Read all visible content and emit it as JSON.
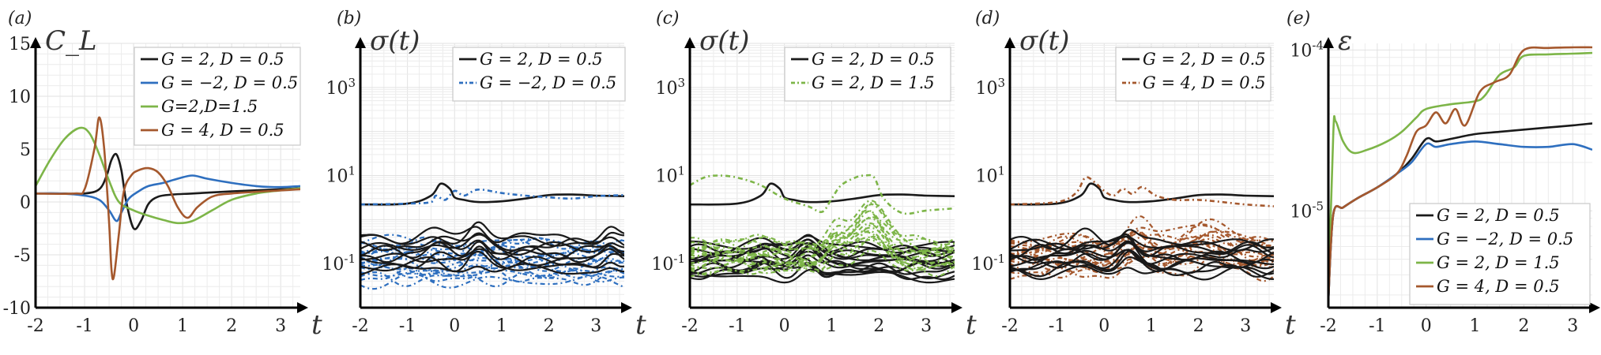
{
  "panel_labels": [
    "(a)",
    "(b)",
    "(c)",
    "(d)",
    "(e)"
  ],
  "colors": {
    "G2D05": "#1a1a1a",
    "Gm2D05": "#2e6fbf",
    "G2D15": "#7db548",
    "G4D05": "#a5582d",
    "legend_border": "#c8c8c8",
    "grid": "#ececec"
  },
  "chart_data": [
    {
      "id": "a",
      "type": "line",
      "ylabel": "C_L",
      "xlabel": "t",
      "xlim": [
        -2,
        3.4
      ],
      "ylim": [
        -10,
        15
      ],
      "yscale": "linear",
      "xticks": [
        "-2",
        "-1",
        "0",
        "1",
        "2",
        "3"
      ],
      "yticks": [
        {
          "v": -10,
          "t": "-10"
        },
        {
          "v": -5,
          "t": "-5"
        },
        {
          "v": 0,
          "t": "0"
        },
        {
          "v": 5,
          "t": "5"
        },
        {
          "v": 10,
          "t": "10"
        },
        {
          "v": 15,
          "t": "15"
        }
      ],
      "legend_position": "top-right",
      "series": [
        {
          "name": "G = 2, D = 0.5",
          "color_key": "G2D05",
          "dash": "none",
          "x": [
            -2,
            -1.5,
            -1,
            -0.7,
            -0.55,
            -0.45,
            -0.35,
            -0.25,
            -0.15,
            0,
            0.15,
            0.3,
            0.5,
            0.8,
            1.2,
            2,
            3,
            3.4
          ],
          "y": [
            0.8,
            0.8,
            0.8,
            1.2,
            2.5,
            4,
            4.5,
            3,
            0,
            -2.5,
            -1.8,
            -0.2,
            0.5,
            0.7,
            0.8,
            1,
            1.2,
            1.3
          ]
        },
        {
          "name": "G = −2, D = 0.5",
          "color_key": "Gm2D05",
          "dash": "none",
          "x": [
            -2,
            -1.5,
            -1,
            -0.7,
            -0.5,
            -0.35,
            -0.25,
            -0.1,
            0.1,
            0.3,
            0.6,
            0.9,
            1.2,
            1.5,
            2,
            2.5,
            3,
            3.4
          ],
          "y": [
            0.8,
            0.8,
            0.6,
            0.2,
            -0.8,
            -1.8,
            -1,
            0.3,
            1,
            1.5,
            1.8,
            2.2,
            2.5,
            2.2,
            1.8,
            1.5,
            1.4,
            1.5
          ]
        },
        {
          "name": "G=2,D=1.5",
          "color_key": "G2D15",
          "dash": "none",
          "x": [
            -2,
            -1.7,
            -1.4,
            -1.1,
            -0.9,
            -0.7,
            -0.5,
            -0.3,
            0,
            0.3,
            0.6,
            0.9,
            1.2,
            1.6,
            2,
            2.5,
            3,
            3.4
          ],
          "y": [
            1.5,
            4,
            6,
            7,
            6.5,
            4.5,
            2,
            0,
            -0.8,
            -1.3,
            -1.7,
            -2,
            -1.8,
            -0.8,
            0.2,
            0.8,
            1.1,
            1.3
          ]
        },
        {
          "name": "G = 4, D = 0.5",
          "color_key": "G4D05",
          "dash": "none",
          "x": [
            -2,
            -1.2,
            -1,
            -0.8,
            -0.7,
            -0.6,
            -0.5,
            -0.45,
            -0.4,
            -0.3,
            -0.2,
            -0.05,
            0.1,
            0.3,
            0.5,
            0.7,
            0.9,
            1.1,
            1.3,
            1.6,
            2,
            3,
            3.4
          ],
          "y": [
            0.8,
            0.8,
            1.2,
            5,
            8,
            5,
            -2,
            -6.5,
            -7,
            -3,
            1,
            2.5,
            3,
            3.2,
            2.8,
            1.5,
            -0.5,
            -1.5,
            -0.5,
            0.5,
            0.8,
            1.1,
            1.2
          ]
        }
      ]
    },
    {
      "id": "b",
      "type": "line",
      "ylabel": "σ(t)",
      "xlabel": "t",
      "xlim": [
        -2,
        3.6
      ],
      "ylim": [
        0.01,
        10000
      ],
      "yscale": "log",
      "xticks": [
        "-2",
        "-1",
        "0",
        "1",
        "2",
        "3"
      ],
      "yticks": [
        {
          "v": 0.1,
          "base": "10",
          "exp": "-1"
        },
        {
          "v": 10,
          "base": "10",
          "exp": "1"
        },
        {
          "v": 1000,
          "base": "10",
          "exp": "3"
        }
      ],
      "legend_position": "top-right",
      "series": [
        {
          "name": "G = 2, D = 0.5",
          "color_key": "G2D05",
          "dash": "none",
          "x": [
            -2,
            -1,
            -0.5,
            -0.3,
            -0.1,
            0,
            0.2,
            0.5,
            1,
            1.5,
            2,
            2.5,
            3,
            3.6
          ],
          "y": [
            2.2,
            2.3,
            3.5,
            6.5,
            5,
            3.2,
            2.8,
            2.5,
            2.6,
            3,
            3.6,
            3.7,
            3.5,
            3.4
          ]
        },
        {
          "name": "G = −2, D = 0.5",
          "color_key": "Gm2D05",
          "dash": "6,4,2,4",
          "x": [
            -2,
            -1,
            -0.5,
            -0.4,
            -0.2,
            0,
            0.2,
            0.5,
            1,
            1.5,
            2,
            2.5,
            3,
            3.6
          ],
          "y": [
            2.2,
            2.3,
            2.5,
            3.5,
            2.8,
            4.5,
            3.5,
            4.8,
            4,
            3.5,
            3.2,
            3,
            3.4,
            3.6
          ]
        }
      ],
      "bands": [
        {
          "color_key": "Gm2D05",
          "dash": "6,4,2,4",
          "lo": 0.04,
          "hi": 0.3,
          "count": 16,
          "phase": 0.8,
          "amp": 0.12,
          "bumps": []
        },
        {
          "color_key": "G2D05",
          "dash": "none",
          "lo": 0.07,
          "hi": 0.4,
          "count": 10,
          "phase": 1.7,
          "amp": 0.1,
          "bumps": [
            {
              "x": -0.4,
              "w": 0.3,
              "amp": 0.2
            },
            {
              "x": 0.5,
              "w": 0.25,
              "amp": 0.4
            },
            {
              "x": 3.3,
              "w": 0.2,
              "amp": 0.25
            }
          ]
        }
      ]
    },
    {
      "id": "c",
      "type": "line",
      "ylabel": "σ(t)",
      "xlabel": "t",
      "xlim": [
        -2,
        3.6
      ],
      "ylim": [
        0.01,
        10000
      ],
      "yscale": "log",
      "xticks": [
        "-2",
        "-1",
        "0",
        "1",
        "2",
        "3"
      ],
      "yticks": [
        {
          "v": 0.1,
          "base": "10",
          "exp": "-1"
        },
        {
          "v": 10,
          "base": "10",
          "exp": "1"
        },
        {
          "v": 1000,
          "base": "10",
          "exp": "3"
        }
      ],
      "legend_position": "top-right",
      "series": [
        {
          "name": "G = 2, D = 0.5",
          "color_key": "G2D05",
          "dash": "none",
          "x": [
            -2,
            -1,
            -0.5,
            -0.3,
            -0.1,
            0,
            0.2,
            0.5,
            1,
            1.5,
            2,
            2.5,
            3,
            3.6
          ],
          "y": [
            2.2,
            2.3,
            3.5,
            6.5,
            5,
            3.2,
            2.8,
            2.5,
            2.6,
            3,
            3.6,
            3.7,
            3.5,
            3.4
          ]
        },
        {
          "name": "G = 2, D = 1.5",
          "color_key": "G2D15",
          "dash": "6,4,2,4",
          "x": [
            -2,
            -1.7,
            -1.4,
            -1,
            -0.5,
            0,
            0.5,
            0.8,
            1,
            1.2,
            1.5,
            1.7,
            1.9,
            2.1,
            2.5,
            3,
            3.6
          ],
          "y": [
            6,
            9,
            10,
            9,
            6,
            3,
            2,
            1.5,
            3,
            6,
            9,
            10,
            9,
            3,
            1.4,
            1.6,
            1.8
          ]
        }
      ],
      "bands": [
        {
          "color_key": "G2D05",
          "dash": "none",
          "lo": 0.05,
          "hi": 0.25,
          "count": 14,
          "phase": 2.3,
          "amp": 0.1,
          "bumps": [
            {
              "x": -0.4,
              "w": 0.3,
              "amp": 0.2
            },
            {
              "x": 0.5,
              "w": 0.25,
              "amp": 0.4
            }
          ]
        },
        {
          "color_key": "G2D15",
          "dash": "6,4,2,4",
          "lo": 0.07,
          "hi": 0.3,
          "count": 16,
          "phase": 1.1,
          "amp": 0.12,
          "bumps": [
            {
              "x": 1.8,
              "w": 0.45,
              "amp": 1.1
            },
            {
              "x": 1.1,
              "w": 0.25,
              "amp": 0.45
            }
          ]
        }
      ]
    },
    {
      "id": "d",
      "type": "line",
      "ylabel": "σ(t)",
      "xlabel": "t",
      "xlim": [
        -2,
        3.6
      ],
      "ylim": [
        0.01,
        10000
      ],
      "yscale": "log",
      "xticks": [
        "-2",
        "-1",
        "0",
        "1",
        "2",
        "3"
      ],
      "yticks": [
        {
          "v": 0.1,
          "base": "10",
          "exp": "-1"
        },
        {
          "v": 10,
          "base": "10",
          "exp": "1"
        },
        {
          "v": 1000,
          "base": "10",
          "exp": "3"
        }
      ],
      "legend_position": "top-right",
      "series": [
        {
          "name": "G = 2, D = 0.5",
          "color_key": "G2D05",
          "dash": "none",
          "x": [
            -2,
            -1,
            -0.5,
            -0.3,
            -0.1,
            0,
            0.2,
            0.5,
            1,
            1.5,
            2,
            2.5,
            3,
            3.6
          ],
          "y": [
            2.2,
            2.3,
            3.5,
            6.5,
            5,
            3.2,
            2.8,
            2.5,
            2.6,
            3,
            3.6,
            3.7,
            3.5,
            3.4
          ]
        },
        {
          "name": "G = 4, D = 0.5",
          "color_key": "G4D05",
          "dash": "6,4,2,4",
          "x": [
            -2,
            -1,
            -0.6,
            -0.4,
            -0.2,
            0,
            0.2,
            0.4,
            0.6,
            0.8,
            1.1,
            1.5,
            2,
            2.5,
            3,
            3.6
          ],
          "y": [
            2.2,
            2.5,
            4,
            9,
            7,
            4.5,
            3.5,
            5,
            3.8,
            5.5,
            3.5,
            2.8,
            2.8,
            2.5,
            2.2,
            2
          ]
        }
      ],
      "bands": [
        {
          "color_key": "G4D05",
          "dash": "6,4,2,4",
          "lo": 0.06,
          "hi": 0.35,
          "count": 16,
          "phase": 0.4,
          "amp": 0.12,
          "bumps": [
            {
              "x": 0.7,
              "w": 0.35,
              "amp": 0.5
            },
            {
              "x": 2.2,
              "w": 0.6,
              "amp": 0.5
            }
          ]
        },
        {
          "color_key": "G2D05",
          "dash": "none",
          "lo": 0.06,
          "hi": 0.3,
          "count": 12,
          "phase": 2.9,
          "amp": 0.1,
          "bumps": [
            {
              "x": -0.4,
              "w": 0.3,
              "amp": 0.2
            },
            {
              "x": 0.5,
              "w": 0.25,
              "amp": 0.4
            }
          ]
        }
      ]
    },
    {
      "id": "e",
      "type": "line",
      "ylabel": "ε",
      "xlabel": "t",
      "xlim": [
        -2,
        3.4
      ],
      "ylim": [
        2.5e-06,
        0.00011
      ],
      "yscale": "log",
      "xticks": [
        "-2",
        "-1",
        "0",
        "1",
        "2",
        "3"
      ],
      "yticks": [
        {
          "v": 1e-05,
          "base": "10",
          "exp": "-5"
        },
        {
          "v": 0.0001,
          "base": "10",
          "exp": "-4"
        }
      ],
      "legend_position": "bottom-right",
      "series": [
        {
          "name": "G = 2, D = 0.5",
          "color_key": "G2D05",
          "dash": "none",
          "x": [
            -2,
            -1.9,
            -1.7,
            -1.4,
            -1,
            -0.6,
            -0.3,
            0,
            0.2,
            0.5,
            1,
            1.5,
            2,
            2.5,
            3,
            3.4
          ],
          "y": [
            2.8e-06,
            9.5e-06,
            1.05e-05,
            1.2e-05,
            1.4e-05,
            1.7e-05,
            2.1e-05,
            2.8e-05,
            2.7e-05,
            2.8e-05,
            3e-05,
            3.1e-05,
            3.2e-05,
            3.3e-05,
            3.4e-05,
            3.5e-05
          ]
        },
        {
          "name": "G = −2, D = 0.5",
          "color_key": "Gm2D05",
          "dash": "none",
          "x": [
            -2,
            -1.9,
            -1.7,
            -1.4,
            -1,
            -0.6,
            -0.3,
            0,
            0.2,
            0.5,
            1,
            1.5,
            2,
            2.5,
            3,
            3.4
          ],
          "y": [
            2.8e-06,
            9.5e-06,
            1.05e-05,
            1.2e-05,
            1.4e-05,
            1.7e-05,
            2e-05,
            2.6e-05,
            2.5e-05,
            2.6e-05,
            2.7e-05,
            2.6e-05,
            2.5e-05,
            2.5e-05,
            2.6e-05,
            2.4e-05
          ]
        },
        {
          "name": "G = 2, D = 1.5",
          "color_key": "G2D15",
          "dash": "none",
          "x": [
            -2,
            -1.9,
            -1.85,
            -1.7,
            -1.5,
            -1.2,
            -0.8,
            -0.5,
            -0.2,
            0,
            0.5,
            1,
            1.2,
            1.5,
            1.8,
            2,
            2.5,
            3,
            3.4
          ],
          "y": [
            2.8e-06,
            3e-05,
            3.6e-05,
            2.7e-05,
            2.3e-05,
            2.4e-05,
            2.7e-05,
            3.1e-05,
            3.8e-05,
            4.3e-05,
            4.6e-05,
            4.8e-05,
            5.2e-05,
            7e-05,
            7.8e-05,
            9.2e-05,
            9.4e-05,
            9.5e-05,
            9.6e-05
          ]
        },
        {
          "name": "G = 4, D = 0.5",
          "color_key": "G4D05",
          "dash": "none",
          "x": [
            -2,
            -1.9,
            -1.7,
            -1.4,
            -1,
            -0.6,
            -0.4,
            -0.2,
            0,
            0.2,
            0.4,
            0.6,
            0.8,
            1.1,
            1.4,
            1.7,
            2,
            2.5,
            3,
            3.4
          ],
          "y": [
            2.8e-06,
            9.5e-06,
            1.05e-05,
            1.2e-05,
            1.4e-05,
            1.7e-05,
            2.2e-05,
            3.1e-05,
            3.4e-05,
            4.1e-05,
            3.5e-05,
            4.3e-05,
            3.4e-05,
            5.5e-05,
            6.3e-05,
            7e-05,
            0.0001,
            0.000103,
            0.000104,
            0.000104
          ]
        }
      ]
    }
  ],
  "legends": [
    {
      "panel": "a",
      "entries": [
        {
          "color_key": "G2D05",
          "dash": "none",
          "label": "G = 2, D = 0.5"
        },
        {
          "color_key": "Gm2D05",
          "dash": "none",
          "label": "G = −2, D = 0.5"
        },
        {
          "color_key": "G2D15",
          "dash": "none",
          "label": "G=2,D=1.5"
        },
        {
          "color_key": "G4D05",
          "dash": "none",
          "label": "G = 4, D = 0.5"
        }
      ]
    },
    {
      "panel": "b",
      "entries": [
        {
          "color_key": "G2D05",
          "dash": "none",
          "label": "G = 2, D = 0.5"
        },
        {
          "color_key": "Gm2D05",
          "dash": "6,4,2,4",
          "label": "G = −2, D = 0.5"
        }
      ]
    },
    {
      "panel": "c",
      "entries": [
        {
          "color_key": "G2D05",
          "dash": "none",
          "label": "G = 2, D = 0.5"
        },
        {
          "color_key": "G2D15",
          "dash": "6,4,2,4",
          "label": "G = 2, D = 1.5"
        }
      ]
    },
    {
      "panel": "d",
      "entries": [
        {
          "color_key": "G2D05",
          "dash": "none",
          "label": "G = 2, D = 0.5"
        },
        {
          "color_key": "G4D05",
          "dash": "6,4,2,4",
          "label": "G = 4, D = 0.5"
        }
      ]
    },
    {
      "panel": "e",
      "entries": [
        {
          "color_key": "G2D05",
          "dash": "none",
          "label": "G = 2, D = 0.5"
        },
        {
          "color_key": "Gm2D05",
          "dash": "none",
          "label": "G = −2, D = 0.5"
        },
        {
          "color_key": "G2D15",
          "dash": "none",
          "label": "G = 2, D = 1.5"
        },
        {
          "color_key": "G4D05",
          "dash": "none",
          "label": "G = 4, D = 0.5"
        }
      ]
    }
  ]
}
